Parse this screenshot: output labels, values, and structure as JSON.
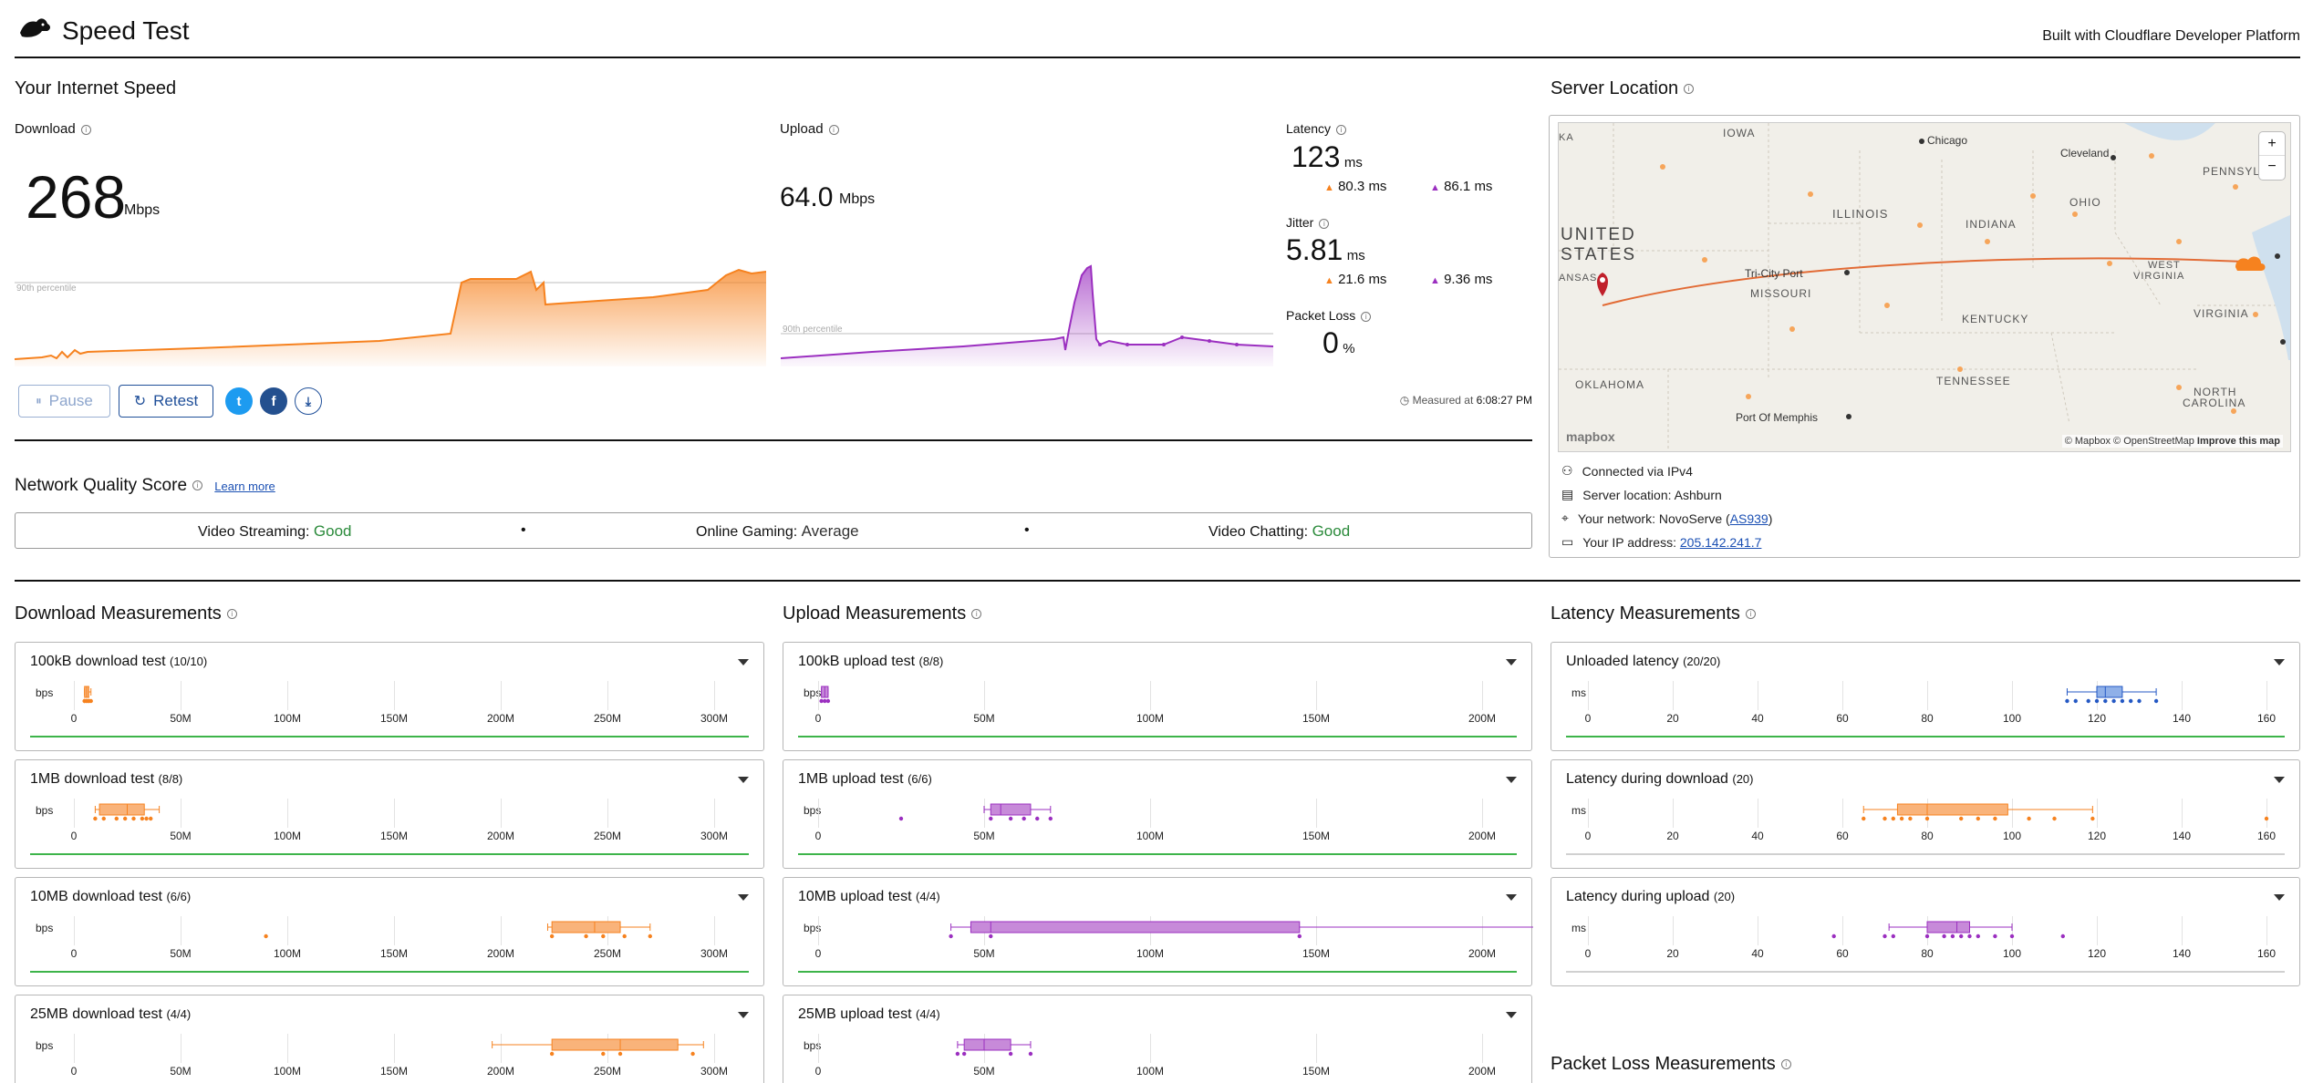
{
  "header": {
    "app_title": "Speed Test",
    "built_with": "Built with Cloudflare Developer Platform"
  },
  "speed": {
    "section_title": "Your Internet Speed",
    "download": {
      "label": "Download",
      "value": "268",
      "unit": "Mbps",
      "percentile_label": "90th percentile"
    },
    "upload": {
      "label": "Upload",
      "value": "64.0",
      "unit": "Mbps",
      "percentile_label": "90th percentile"
    },
    "latency": {
      "label": "Latency",
      "value": "123",
      "unit": "ms",
      "down": "80.3",
      "down_unit": "ms",
      "up": "86.1",
      "up_unit": "ms"
    },
    "jitter": {
      "label": "Jitter",
      "value": "5.81",
      "unit": "ms",
      "down": "21.6",
      "down_unit": "ms",
      "up": "9.36",
      "up_unit": "ms"
    },
    "packet_loss": {
      "label": "Packet Loss",
      "value": "0",
      "unit": "%"
    },
    "measured_at_label": "Measured at",
    "measured_at": "6:08:27 PM",
    "pause_label": "Pause",
    "retest_label": "Retest"
  },
  "server": {
    "title": "Server Location",
    "connected": "Connected via IPv4",
    "location": "Server location: Ashburn",
    "network_prefix": "Your network: NovoServe (",
    "network_asn": "AS939",
    "network_suffix": ")",
    "ip_prefix": "Your IP address: ",
    "ip": "205.142.241.7",
    "map_attribution": "© Mapbox © OpenStreetMap",
    "map_improve": "Improve this map",
    "map_logo": "mapbox",
    "zoom_in": "+",
    "zoom_out": "−",
    "labels": {
      "iowa": "IOWA",
      "chicago": "Chicago",
      "cleveland": "Cleveland",
      "ohio": "OHIO",
      "penn": "PENNSYLVAN",
      "illinois": "ILLINOIS",
      "indiana": "INDIANA",
      "us1": "UNITED",
      "us2": "STATES",
      "kansas": "ANSAS",
      "tricity": "Tri-City Port",
      "missouri": "MISSOURI",
      "kentucky": "KENTUCKY",
      "westva1": "WEST",
      "westva2": "VIRGINIA",
      "virginia": "VIRGINIA",
      "oklahoma": "OKLAHOMA",
      "tennessee": "TENNESSEE",
      "nc1": "NORTH",
      "nc2": "CAROLINA",
      "memphis": "Port Of Memphis",
      "ka": "KA"
    }
  },
  "quality": {
    "title": "Network Quality Score",
    "learn_more": "Learn more",
    "streaming_label": "Video Streaming:",
    "streaming_value": "Good",
    "gaming_label": "Online Gaming:",
    "gaming_value": "Average",
    "chatting_label": "Video Chatting:",
    "chatting_value": "Good",
    "bullet": "•"
  },
  "download_measurements": {
    "title": "Download Measurements",
    "unit": "bps",
    "ticks": [
      "0",
      "50M",
      "100M",
      "150M",
      "200M",
      "250M",
      "300M"
    ],
    "tests": [
      {
        "name": "100kB download test",
        "count": "(10/10)"
      },
      {
        "name": "1MB download test",
        "count": "(8/8)"
      },
      {
        "name": "10MB download test",
        "count": "(6/6)"
      },
      {
        "name": "25MB download test",
        "count": "(4/4)"
      }
    ]
  },
  "upload_measurements": {
    "title": "Upload Measurements",
    "unit": "bps",
    "ticks": [
      "0",
      "50M",
      "100M",
      "150M",
      "200M"
    ],
    "tests": [
      {
        "name": "100kB upload test",
        "count": "(8/8)"
      },
      {
        "name": "1MB upload test",
        "count": "(6/6)"
      },
      {
        "name": "10MB upload test",
        "count": "(4/4)"
      },
      {
        "name": "25MB upload test",
        "count": "(4/4)"
      }
    ]
  },
  "latency_measurements": {
    "title": "Latency Measurements",
    "unit": "ms",
    "ticks": [
      "0",
      "20",
      "40",
      "60",
      "80",
      "100",
      "120",
      "140",
      "160"
    ],
    "tests": [
      {
        "name": "Unloaded latency",
        "count": "(20/20)"
      },
      {
        "name": "Latency during download",
        "count": "(20)"
      },
      {
        "name": "Latency during upload",
        "count": "(20)"
      }
    ]
  },
  "packet_loss_measurements": {
    "title": "Packet Loss Measurements"
  },
  "colors": {
    "download": "#f6821f",
    "upload": "#9b2fc0",
    "latency": "#2458c4",
    "good": "#2a8a3a",
    "accent": "#1f4f99"
  }
}
